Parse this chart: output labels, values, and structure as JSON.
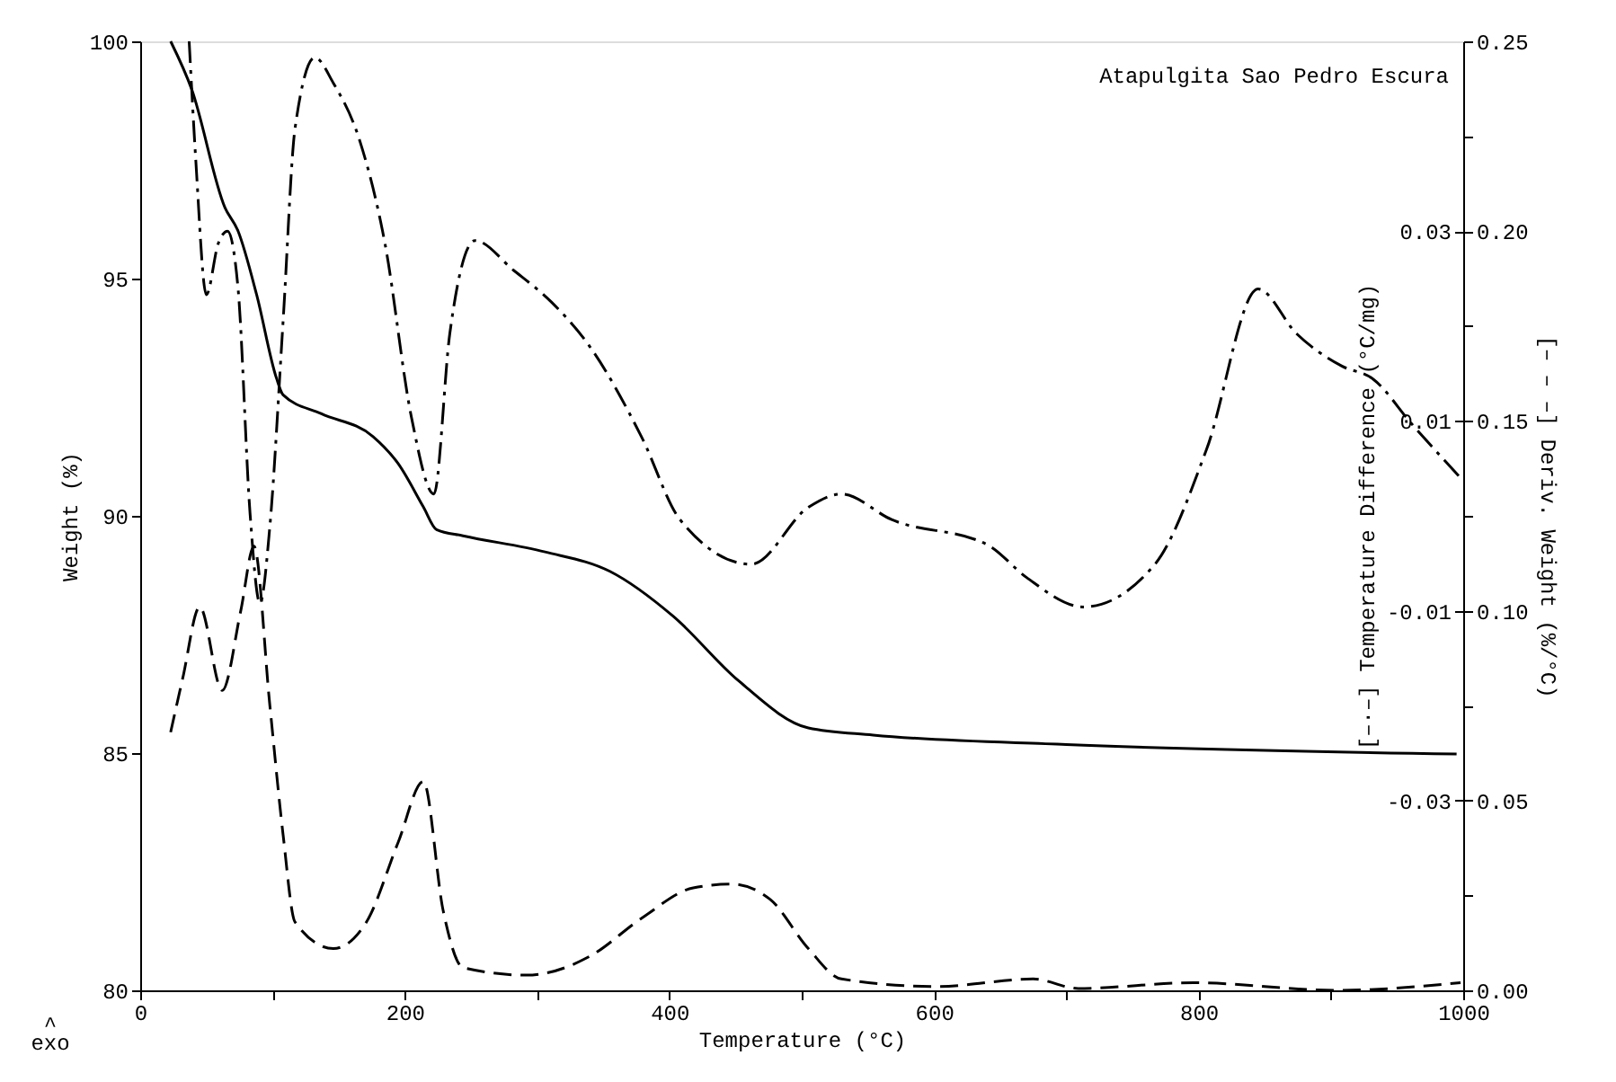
{
  "chart_data": {
    "type": "line",
    "xlabel": "Temperature (°C)",
    "ylabel": "Weight (%)",
    "y2label": "[– – –] Deriv. Weight (%/°C)",
    "y3label": "[–·–] Temperature Difference (°C/mg)",
    "annotations": [
      "Atapulgita Sao Pedro Escura",
      "^\nexo"
    ],
    "xlim": [
      0,
      1000
    ],
    "xticks": [
      0,
      {
        "value": 100,
        "label": null
      },
      200,
      {
        "value": 300,
        "label": null
      },
      400,
      {
        "value": 500,
        "label": null
      },
      600,
      {
        "value": 700,
        "label": null
      },
      800,
      {
        "value": 900,
        "label": null
      },
      1000
    ],
    "ylim": [
      80,
      100
    ],
    "yticks": [
      80,
      85,
      90,
      95,
      100
    ],
    "y2lim": [
      0,
      0.25
    ],
    "y2ticks": [
      {
        "value": 0,
        "label": "0.00"
      },
      {
        "value": 0.025,
        "label": null
      },
      {
        "value": 0.05,
        "label": "0.05"
      },
      {
        "value": 0.075,
        "label": null
      },
      {
        "value": 0.1,
        "label": "0.10"
      },
      {
        "value": 0.125,
        "label": null
      },
      {
        "value": 0.15,
        "label": "0.15"
      },
      {
        "value": 0.175,
        "label": null
      },
      {
        "value": 0.2,
        "label": "0.20"
      },
      {
        "value": 0.225,
        "label": null
      },
      {
        "value": 0.25,
        "label": "0.25"
      }
    ],
    "y3lim": [
      -0.05,
      0.05
    ],
    "y3ticks": [
      -0.03,
      -0.01,
      0.01,
      0.03
    ],
    "grid": false,
    "series": [
      {
        "axis": "y",
        "color": "#000000",
        "line_style": "solid",
        "x": [
          23,
          39,
          64,
          74,
          88,
          103,
          108,
          137,
          176,
          195,
          214,
          224,
          244,
          306,
          355,
          403,
          452,
          505,
          554,
          700,
          995
        ],
        "values": [
          100,
          98.98,
          96.5,
          96.0,
          94.66,
          92.9,
          92.55,
          92.15,
          91.67,
          91.1,
          90.19,
          89.71,
          89.58,
          89.24,
          88.83,
          87.88,
          86.53,
          85.53,
          85.38,
          85.18,
          84.98
        ]
      },
      {
        "axis": "y3",
        "color": "#000000",
        "line_style": "dashdot",
        "x": [
          37,
          42,
          50,
          59,
          66,
          74,
          83,
          90.5,
          98,
          108,
          117,
          132,
          146,
          166,
          185,
          205,
          222,
          234,
          253,
          282,
          311,
          340,
          379,
          408,
          462,
          505,
          530,
          568,
          641,
          670,
          713,
          767,
          806,
          845,
          874,
          908,
          932,
          961,
          998
        ],
        "values": [
          0.05,
          0.0375,
          0.0233,
          0.0287,
          0.03,
          0.0239,
          0.0003,
          -0.0092,
          -0.0011,
          0.0205,
          0.0408,
          0.0483,
          0.0456,
          0.0395,
          0.0287,
          0.0104,
          0.0023,
          0.0192,
          0.029,
          0.0259,
          0.0225,
          0.0178,
          0.0083,
          -0.0004,
          -0.0051,
          0.0009,
          0.0023,
          -0.0004,
          -0.0031,
          -0.0065,
          -0.0096,
          -0.0051,
          0.007,
          0.0239,
          0.0192,
          0.0158,
          0.0144,
          0.0097,
          0.004
        ]
      },
      {
        "axis": "y2",
        "color": "#000000",
        "line_style": "dashed",
        "x": [
          23,
          32,
          45,
          62,
          76,
          86,
          98,
          108,
          117,
          146,
          171,
          195,
          214,
          229,
          244,
          292,
          340,
          379,
          418,
          447,
          476,
          505,
          530,
          602,
          675,
          709,
          796,
          904,
          998
        ],
        "values": [
          0.068,
          0.082,
          0.101,
          0.079,
          0.1,
          0.117,
          0.075,
          0.041,
          0.018,
          0.011,
          0.018,
          0.039,
          0.055,
          0.021,
          0.006,
          0.004,
          0.009,
          0.019,
          0.027,
          0.028,
          0.024,
          0.011,
          0.003,
          0.001,
          0.003,
          0.0005,
          0.002,
          0,
          0.002
        ]
      }
    ]
  }
}
